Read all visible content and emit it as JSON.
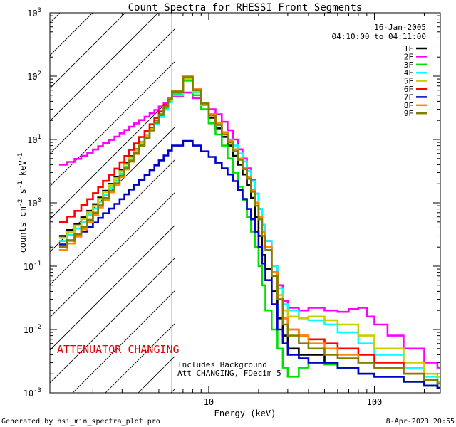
{
  "chart_data": {
    "type": "line",
    "title": "Count Spectra for RHESSI Front Segments",
    "xlabel": "Energy (keV)",
    "ylabel_parts": {
      "base": "counts cm",
      "exp1": "-2",
      "mid": " s",
      "exp2": "-1",
      "end": " keV",
      "exp3": "-1"
    },
    "xscale": "log",
    "yscale": "log",
    "xlim": [
      1.1,
      250
    ],
    "ylim": [
      0.001,
      1000
    ],
    "x_ticks": [
      {
        "value": 10,
        "label": "10"
      },
      {
        "value": 100,
        "label": "100"
      }
    ],
    "y_ticks": [
      {
        "value": 0.001,
        "base": "10",
        "exp": "-3"
      },
      {
        "value": 0.01,
        "base": "10",
        "exp": "-2"
      },
      {
        "value": 0.1,
        "base": "10",
        "exp": "-1"
      },
      {
        "value": 1,
        "base": "10",
        "exp": "0"
      },
      {
        "value": 10,
        "base": "10",
        "exp": "1"
      },
      {
        "value": 100,
        "base": "10",
        "exp": "2"
      },
      {
        "value": 1000,
        "base": "10",
        "exp": "3"
      }
    ],
    "attenuator_boundary_kev": 6,
    "date": "16-Jan-2005",
    "time_range": "04:10:00 to 04:11:00",
    "annotations": {
      "attenuator": "ATTENUATOR CHANGING",
      "background": "Includes Background",
      "att_status": "Att CHANGING, FDecim 5"
    },
    "footer_left": "Generated by hsi_min_spectra_plot.pro",
    "footer_right": "8-Apr-2023 20:55",
    "series": [
      {
        "name": "1F",
        "color": "#000000",
        "low_start": 0.3,
        "points": [
          [
            6,
            55
          ],
          [
            7,
            95
          ],
          [
            8,
            60
          ],
          [
            9,
            35
          ],
          [
            10,
            22
          ],
          [
            11,
            15
          ],
          [
            12,
            11
          ],
          [
            13,
            8
          ],
          [
            14,
            5.5
          ],
          [
            15,
            4
          ],
          [
            16,
            2.8
          ],
          [
            17,
            1.9
          ],
          [
            18,
            1.2
          ],
          [
            19,
            0.6
          ],
          [
            20,
            0.3
          ],
          [
            21,
            0.15
          ],
          [
            22,
            0.09
          ],
          [
            24,
            0.04
          ],
          [
            26,
            0.015
          ],
          [
            28,
            0.008
          ],
          [
            30,
            0.005
          ],
          [
            35,
            0.004
          ],
          [
            40,
            0.004
          ],
          [
            50,
            0.003
          ],
          [
            60,
            0.0025
          ],
          [
            80,
            0.002
          ],
          [
            100,
            0.0018
          ],
          [
            150,
            0.0015
          ],
          [
            200,
            0.0013
          ],
          [
            240,
            0.0012
          ]
        ]
      },
      {
        "name": "2F",
        "color": "#ff00ff",
        "low_start": 4,
        "points": [
          [
            6,
            48
          ],
          [
            7,
            55
          ],
          [
            8,
            45
          ],
          [
            9,
            38
          ],
          [
            10,
            30
          ],
          [
            11,
            25
          ],
          [
            12,
            19
          ],
          [
            13,
            14
          ],
          [
            14,
            10
          ],
          [
            15,
            7
          ],
          [
            16,
            5
          ],
          [
            17,
            3.5
          ],
          [
            18,
            2.3
          ],
          [
            19,
            1.4
          ],
          [
            20,
            0.8
          ],
          [
            21,
            0.45
          ],
          [
            22,
            0.25
          ],
          [
            24,
            0.1
          ],
          [
            26,
            0.05
          ],
          [
            28,
            0.028
          ],
          [
            30,
            0.022
          ],
          [
            35,
            0.02
          ],
          [
            40,
            0.022
          ],
          [
            50,
            0.02
          ],
          [
            60,
            0.019
          ],
          [
            70,
            0.021
          ],
          [
            80,
            0.022
          ],
          [
            90,
            0.016
          ],
          [
            100,
            0.012
          ],
          [
            120,
            0.008
          ],
          [
            150,
            0.005
          ],
          [
            200,
            0.003
          ],
          [
            240,
            0.0025
          ]
        ]
      },
      {
        "name": "3F",
        "color": "#00e000",
        "low_start": 0.25,
        "points": [
          [
            6,
            52
          ],
          [
            7,
            85
          ],
          [
            8,
            50
          ],
          [
            9,
            30
          ],
          [
            10,
            18
          ],
          [
            11,
            12
          ],
          [
            12,
            8
          ],
          [
            13,
            5
          ],
          [
            14,
            3
          ],
          [
            15,
            1.8
          ],
          [
            16,
            1.1
          ],
          [
            17,
            0.6
          ],
          [
            18,
            0.35
          ],
          [
            19,
            0.2
          ],
          [
            20,
            0.1
          ],
          [
            21,
            0.05
          ],
          [
            22,
            0.02
          ],
          [
            24,
            0.01
          ],
          [
            26,
            0.005
          ],
          [
            28,
            0.0025
          ],
          [
            30,
            0.0018
          ],
          [
            35,
            0.0025
          ],
          [
            40,
            0.003
          ],
          [
            50,
            0.0028
          ],
          [
            60,
            0.0025
          ],
          [
            80,
            0.002
          ],
          [
            100,
            0.0018
          ],
          [
            150,
            0.0015
          ],
          [
            200,
            0.0013
          ],
          [
            240,
            0.0012
          ]
        ]
      },
      {
        "name": "4F",
        "color": "#00ffff",
        "low_start": 0.25,
        "points": [
          [
            6,
            50
          ],
          [
            7,
            90
          ],
          [
            8,
            55
          ],
          [
            9,
            35
          ],
          [
            10,
            24
          ],
          [
            11,
            17
          ],
          [
            12,
            13
          ],
          [
            13,
            10
          ],
          [
            14,
            8
          ],
          [
            15,
            6
          ],
          [
            16,
            4.5
          ],
          [
            17,
            3.2
          ],
          [
            18,
            2.2
          ],
          [
            19,
            1.4
          ],
          [
            20,
            0.8
          ],
          [
            21,
            0.45
          ],
          [
            22,
            0.25
          ],
          [
            24,
            0.1
          ],
          [
            26,
            0.045
          ],
          [
            28,
            0.025
          ],
          [
            30,
            0.02
          ],
          [
            35,
            0.015
          ],
          [
            40,
            0.014
          ],
          [
            50,
            0.012
          ],
          [
            60,
            0.009
          ],
          [
            80,
            0.006
          ],
          [
            100,
            0.004
          ],
          [
            150,
            0.0025
          ],
          [
            200,
            0.0018
          ],
          [
            240,
            0.0015
          ]
        ]
      },
      {
        "name": "5F",
        "color": "#cccc00",
        "low_start": 0.28,
        "points": [
          [
            6,
            55
          ],
          [
            7,
            92
          ],
          [
            8,
            58
          ],
          [
            9,
            36
          ],
          [
            10,
            24
          ],
          [
            11,
            17
          ],
          [
            12,
            12
          ],
          [
            13,
            9
          ],
          [
            14,
            6.5
          ],
          [
            15,
            4.8
          ],
          [
            16,
            3.4
          ],
          [
            17,
            2.4
          ],
          [
            18,
            1.6
          ],
          [
            19,
            1
          ],
          [
            20,
            0.6
          ],
          [
            21,
            0.35
          ],
          [
            22,
            0.2
          ],
          [
            24,
            0.08
          ],
          [
            26,
            0.035
          ],
          [
            28,
            0.02
          ],
          [
            30,
            0.016
          ],
          [
            35,
            0.015
          ],
          [
            40,
            0.016
          ],
          [
            50,
            0.014
          ],
          [
            60,
            0.012
          ],
          [
            80,
            0.008
          ],
          [
            100,
            0.005
          ],
          [
            150,
            0.003
          ],
          [
            200,
            0.002
          ],
          [
            240,
            0.0018
          ]
        ]
      },
      {
        "name": "6F",
        "color": "#ff0000",
        "low_start": 0.5,
        "points": [
          [
            6,
            56
          ],
          [
            7,
            98
          ],
          [
            8,
            62
          ],
          [
            9,
            38
          ],
          [
            10,
            25
          ],
          [
            11,
            18
          ],
          [
            12,
            13
          ],
          [
            13,
            9.5
          ],
          [
            14,
            7
          ],
          [
            15,
            5
          ],
          [
            16,
            3.5
          ],
          [
            17,
            2.5
          ],
          [
            18,
            1.6
          ],
          [
            19,
            1
          ],
          [
            20,
            0.6
          ],
          [
            21,
            0.35
          ],
          [
            22,
            0.2
          ],
          [
            24,
            0.08
          ],
          [
            26,
            0.03
          ],
          [
            28,
            0.015
          ],
          [
            30,
            0.01
          ],
          [
            35,
            0.008
          ],
          [
            40,
            0.007
          ],
          [
            50,
            0.006
          ],
          [
            60,
            0.005
          ],
          [
            80,
            0.004
          ],
          [
            100,
            0.003
          ],
          [
            150,
            0.002
          ],
          [
            200,
            0.0016
          ],
          [
            240,
            0.0014
          ]
        ]
      },
      {
        "name": "7F",
        "color": "#0000cc",
        "low_start": 0.22,
        "points": [
          [
            6,
            8
          ],
          [
            7,
            9.5
          ],
          [
            8,
            8
          ],
          [
            9,
            6.5
          ],
          [
            10,
            5.3
          ],
          [
            11,
            4.3
          ],
          [
            12,
            3.5
          ],
          [
            13,
            2.8
          ],
          [
            14,
            2.2
          ],
          [
            15,
            1.6
          ],
          [
            16,
            1.15
          ],
          [
            17,
            0.8
          ],
          [
            18,
            0.55
          ],
          [
            19,
            0.35
          ],
          [
            20,
            0.2
          ],
          [
            21,
            0.11
          ],
          [
            22,
            0.06
          ],
          [
            24,
            0.025
          ],
          [
            26,
            0.01
          ],
          [
            28,
            0.006
          ],
          [
            30,
            0.004
          ],
          [
            35,
            0.0035
          ],
          [
            40,
            0.003
          ],
          [
            50,
            0.003
          ],
          [
            60,
            0.0025
          ],
          [
            80,
            0.002
          ],
          [
            100,
            0.0018
          ],
          [
            150,
            0.0015
          ],
          [
            200,
            0.0013
          ],
          [
            240,
            0.0012
          ]
        ]
      },
      {
        "name": "8F",
        "color": "#ff8800",
        "low_start": 0.18,
        "points": [
          [
            6,
            58
          ],
          [
            7,
            100
          ],
          [
            8,
            62
          ],
          [
            9,
            38
          ],
          [
            10,
            25
          ],
          [
            11,
            18
          ],
          [
            12,
            13
          ],
          [
            13,
            9.5
          ],
          [
            14,
            7
          ],
          [
            15,
            5
          ],
          [
            16,
            3.6
          ],
          [
            17,
            2.5
          ],
          [
            18,
            1.6
          ],
          [
            19,
            1
          ],
          [
            20,
            0.6
          ],
          [
            21,
            0.35
          ],
          [
            22,
            0.2
          ],
          [
            24,
            0.08
          ],
          [
            26,
            0.03
          ],
          [
            28,
            0.015
          ],
          [
            30,
            0.01
          ],
          [
            35,
            0.008
          ],
          [
            40,
            0.006
          ],
          [
            50,
            0.005
          ],
          [
            60,
            0.004
          ],
          [
            80,
            0.003
          ],
          [
            100,
            0.0025
          ],
          [
            150,
            0.002
          ],
          [
            200,
            0.0016
          ],
          [
            240,
            0.0014
          ]
        ]
      },
      {
        "name": "9F",
        "color": "#808000",
        "low_start": 0.2,
        "points": [
          [
            6,
            57
          ],
          [
            7,
            96
          ],
          [
            8,
            60
          ],
          [
            9,
            37
          ],
          [
            10,
            24
          ],
          [
            11,
            17
          ],
          [
            12,
            12
          ],
          [
            13,
            9
          ],
          [
            14,
            6.5
          ],
          [
            15,
            4.8
          ],
          [
            16,
            3.4
          ],
          [
            17,
            2.4
          ],
          [
            18,
            1.5
          ],
          [
            19,
            0.9
          ],
          [
            20,
            0.55
          ],
          [
            21,
            0.3
          ],
          [
            22,
            0.18
          ],
          [
            24,
            0.07
          ],
          [
            26,
            0.03
          ],
          [
            28,
            0.012
          ],
          [
            30,
            0.008
          ],
          [
            35,
            0.006
          ],
          [
            40,
            0.005
          ],
          [
            50,
            0.004
          ],
          [
            60,
            0.0035
          ],
          [
            80,
            0.003
          ],
          [
            100,
            0.0025
          ],
          [
            150,
            0.002
          ],
          [
            200,
            0.0016
          ],
          [
            240,
            0.0014
          ]
        ]
      }
    ]
  }
}
